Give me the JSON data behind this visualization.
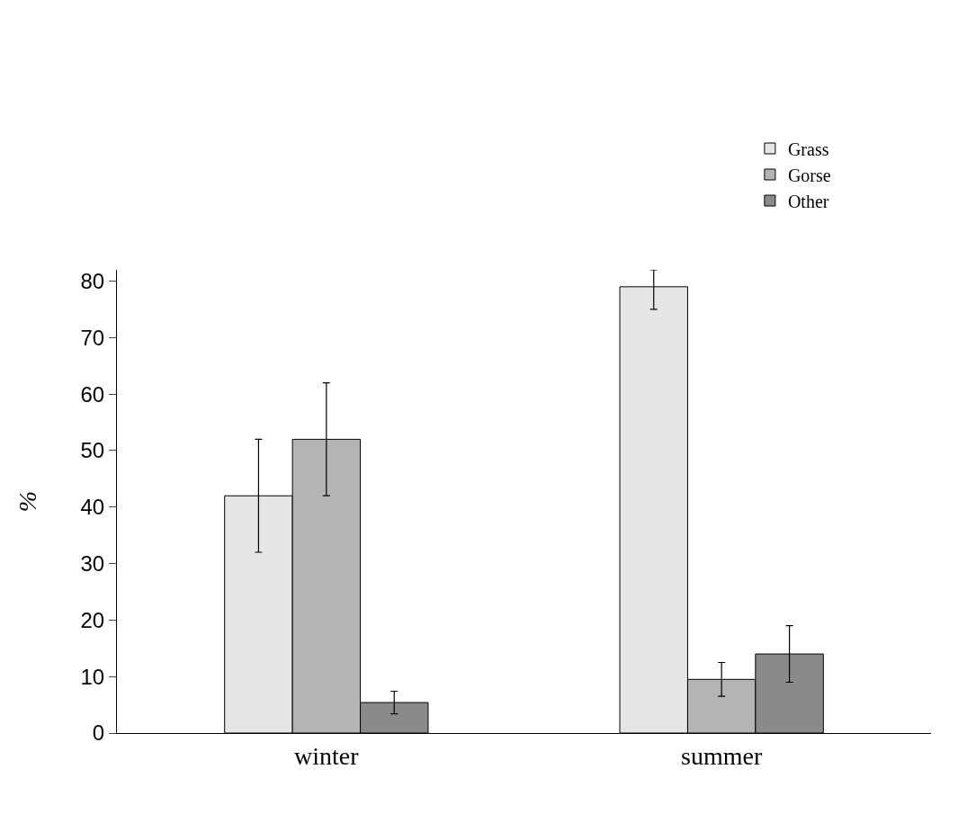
{
  "chart_data": {
    "type": "bar",
    "ylabel": "%",
    "categories": [
      "winter",
      "summer"
    ],
    "series": [
      {
        "name": "Grass",
        "color": "#e6e6e6",
        "values": [
          42,
          79
        ],
        "errors": [
          10,
          [
            75,
            82
          ]
        ]
      },
      {
        "name": "Gorse",
        "color": "#b4b4b4",
        "values": [
          52,
          9.5
        ],
        "errors": [
          10,
          [
            6.5,
            12.5
          ]
        ]
      },
      {
        "name": "Other",
        "color": "#8a8a8a",
        "values": [
          5.4,
          14
        ],
        "errors": [
          2,
          [
            9,
            19
          ]
        ]
      }
    ],
    "ylim": [
      0,
      82
    ],
    "yticks": [
      0,
      10,
      20,
      30,
      40,
      50,
      60,
      70,
      80
    ],
    "grid": false,
    "legend": "top right"
  }
}
